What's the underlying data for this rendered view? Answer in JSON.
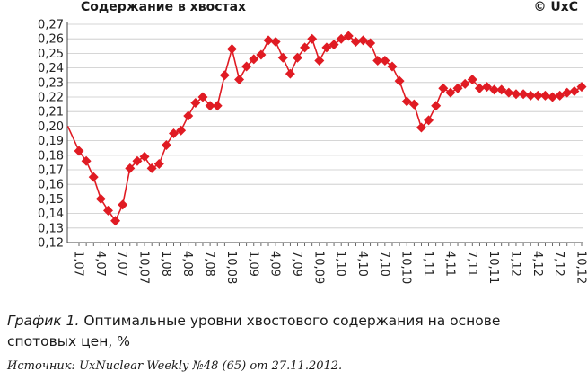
{
  "chart_data": {
    "type": "line",
    "title": "Содержание в хвостах",
    "copyright": "© UxC",
    "xlabel": "",
    "ylabel": "",
    "ylim": [
      0.12,
      0.27
    ],
    "y_ticks": [
      "0,12",
      "0,13",
      "0,14",
      "0,15",
      "0,16",
      "0,17",
      "0,18",
      "0,19",
      "0,20",
      "0,21",
      "0,22",
      "0,23",
      "0,24",
      "0,25",
      "0,26",
      "0,27"
    ],
    "x_ticks": [
      "1,07",
      "4,07",
      "7,07",
      "10,07",
      "1,08",
      "4,08",
      "7,08",
      "10,08",
      "1,09",
      "4,09",
      "7,09",
      "10,09",
      "1,10",
      "4,10",
      "7,10",
      "10,10",
      "1,11",
      "4,11",
      "7,11",
      "10,11",
      "1,12",
      "4,12",
      "7,12",
      "10,12"
    ],
    "grid": true,
    "series": [
      {
        "color": "#e01b23",
        "marker": "diamond",
        "start_value": 0.2,
        "values": [
          0.183,
          0.176,
          0.165,
          0.15,
          0.142,
          0.135,
          0.146,
          0.171,
          0.176,
          0.179,
          0.171,
          0.174,
          0.187,
          0.195,
          0.197,
          0.207,
          0.216,
          0.22,
          0.214,
          0.214,
          0.235,
          0.253,
          0.232,
          0.241,
          0.246,
          0.249,
          0.259,
          0.258,
          0.247,
          0.236,
          0.247,
          0.254,
          0.26,
          0.245,
          0.254,
          0.256,
          0.26,
          0.262,
          0.258,
          0.259,
          0.257,
          0.245,
          0.245,
          0.241,
          0.231,
          0.217,
          0.215,
          0.199,
          0.204,
          0.214,
          0.226,
          0.223,
          0.226,
          0.229,
          0.232,
          0.226,
          0.227,
          0.225,
          0.225,
          0.223,
          0.222,
          0.222,
          0.221,
          0.221,
          0.221,
          0.22,
          0.221,
          0.223,
          0.224,
          0.227
        ]
      }
    ]
  },
  "caption": {
    "label": "График 1.",
    "text": "Оптимальные уровни хвостового содержания на основе спотовых цен, %"
  },
  "source": "Источник: UxNuclear Weekly №48 (65) от 27.11.2012."
}
